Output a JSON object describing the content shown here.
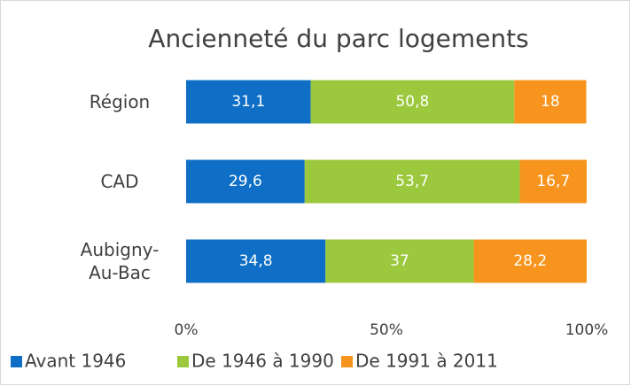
{
  "chart_data": {
    "type": "stacked-bar-horizontal",
    "title": "Ancienneté du parc logements",
    "categories": [
      "Région",
      "CAD",
      "Aubigny-Au-Bac"
    ],
    "series": [
      {
        "name": "Avant 1946",
        "color": "#0f6fc6",
        "values": [
          31.1,
          29.6,
          34.8
        ],
        "value_labels": [
          "31,1",
          "29,6",
          "34,8"
        ]
      },
      {
        "name": "De 1946 à 1990",
        "color": "#9bc83c",
        "values": [
          50.8,
          53.7,
          37
        ],
        "value_labels": [
          "50,8",
          "53,7",
          "37"
        ]
      },
      {
        "name": "De 1991 à 2011",
        "color": "#f7941d",
        "values": [
          18,
          16.7,
          28.2
        ],
        "value_labels": [
          "18",
          "16,7",
          "28,2"
        ]
      }
    ],
    "xlim": [
      0,
      100
    ],
    "xticks": [
      {
        "value": 0,
        "label": "0%"
      },
      {
        "value": 50,
        "label": "50%"
      },
      {
        "value": 100,
        "label": "100%"
      }
    ],
    "legend": "bottom",
    "grid": false
  }
}
